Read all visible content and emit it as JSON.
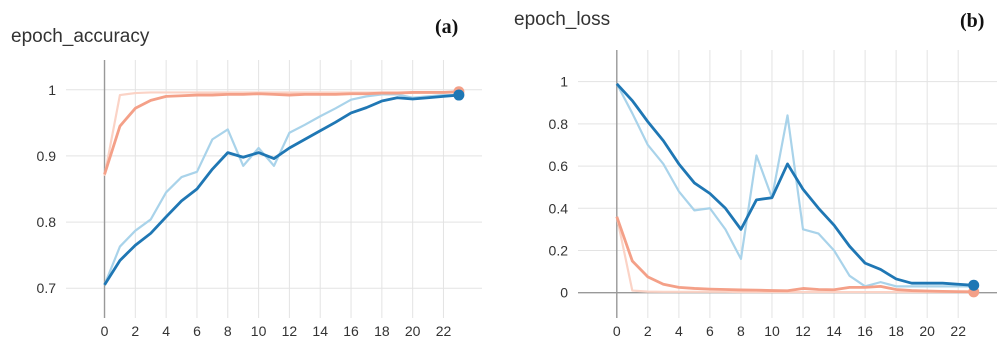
{
  "chart_data": [
    {
      "type": "line",
      "title": "epoch_accuracy",
      "panel_label": "(a)",
      "xlim": [
        -2.5,
        24.5
      ],
      "ylim": [
        0.655,
        1.045
      ],
      "xticks": [
        0,
        2,
        4,
        6,
        8,
        10,
        12,
        14,
        16,
        18,
        20,
        22
      ],
      "yticks": [
        0.7,
        0.8,
        0.9,
        1
      ],
      "ytick_labels": [
        "0.7",
        "0.8",
        "0.9",
        "1"
      ],
      "grid": true,
      "series": [
        {
          "color": "#f4a088",
          "light_color": "#fbd3c6",
          "x": [
            0,
            1,
            2,
            3,
            4,
            5,
            6,
            7,
            8,
            9,
            10,
            11,
            12,
            13,
            14,
            15,
            16,
            17,
            18,
            19,
            20,
            21,
            22,
            23
          ],
          "values": [
            0.872,
            0.945,
            0.972,
            0.984,
            0.99,
            0.991,
            0.992,
            0.992,
            0.993,
            0.993,
            0.994,
            0.993,
            0.992,
            0.993,
            0.993,
            0.993,
            0.994,
            0.994,
            0.995,
            0.995,
            0.996,
            0.996,
            0.996,
            0.997
          ],
          "raw": [
            0.87,
            0.992,
            0.995,
            0.996,
            0.996,
            0.996,
            0.996,
            0.996,
            0.996,
            0.996,
            0.996,
            0.996,
            0.996,
            0.996,
            0.996,
            0.996,
            0.996,
            0.996,
            0.996,
            0.996,
            0.996,
            0.996,
            0.996,
            0.997
          ]
        },
        {
          "color": "#1f77b4",
          "light_color": "#a9d3ea",
          "x": [
            0,
            1,
            2,
            3,
            4,
            5,
            6,
            7,
            8,
            9,
            10,
            11,
            12,
            13,
            14,
            15,
            16,
            17,
            18,
            19,
            20,
            21,
            22,
            23
          ],
          "values": [
            0.705,
            0.742,
            0.765,
            0.783,
            0.808,
            0.832,
            0.85,
            0.88,
            0.905,
            0.898,
            0.905,
            0.896,
            0.912,
            0.925,
            0.938,
            0.951,
            0.965,
            0.973,
            0.983,
            0.988,
            0.986,
            0.988,
            0.99,
            0.992
          ],
          "raw": [
            0.705,
            0.763,
            0.787,
            0.804,
            0.845,
            0.868,
            0.876,
            0.925,
            0.94,
            0.885,
            0.912,
            0.885,
            0.935,
            0.947,
            0.96,
            0.972,
            0.985,
            0.99,
            0.993,
            0.993,
            0.988,
            0.99,
            0.992,
            0.992
          ]
        }
      ]
    },
    {
      "type": "line",
      "title": "epoch_loss",
      "panel_label": "(b)",
      "xlim": [
        -2.5,
        24.5
      ],
      "ylim": [
        -0.12,
        1.15
      ],
      "xticks": [
        0,
        2,
        4,
        6,
        8,
        10,
        12,
        14,
        16,
        18,
        20,
        22
      ],
      "yticks": [
        0,
        0.2,
        0.4,
        0.6,
        0.8,
        1
      ],
      "ytick_labels": [
        "0",
        "0.2",
        "0.4",
        "0.6",
        "0.8",
        "1"
      ],
      "grid": true,
      "series": [
        {
          "color": "#f4a088",
          "light_color": "#fbd3c6",
          "x": [
            0,
            1,
            2,
            3,
            4,
            5,
            6,
            7,
            8,
            9,
            10,
            11,
            12,
            13,
            14,
            15,
            16,
            17,
            18,
            19,
            20,
            21,
            22,
            23
          ],
          "values": [
            0.36,
            0.15,
            0.075,
            0.04,
            0.025,
            0.02,
            0.017,
            0.015,
            0.013,
            0.012,
            0.01,
            0.009,
            0.02,
            0.015,
            0.014,
            0.025,
            0.025,
            0.03,
            0.015,
            0.01,
            0.008,
            0.006,
            0.005,
            0.004
          ],
          "raw": [
            0.36,
            0.01,
            0.005,
            0.004,
            0.004,
            0.004,
            0.004,
            0.004,
            0.003,
            0.003,
            0.003,
            0.003,
            0.003,
            0.003,
            0.003,
            0.003,
            0.003,
            0.003,
            0.003,
            0.003,
            0.003,
            0.003,
            0.003,
            0.003
          ]
        },
        {
          "color": "#1f77b4",
          "light_color": "#a9d3ea",
          "x": [
            0,
            1,
            2,
            3,
            4,
            5,
            6,
            7,
            8,
            9,
            10,
            11,
            12,
            13,
            14,
            15,
            16,
            17,
            18,
            19,
            20,
            21,
            22,
            23
          ],
          "values": [
            0.99,
            0.91,
            0.81,
            0.72,
            0.61,
            0.52,
            0.47,
            0.4,
            0.3,
            0.44,
            0.45,
            0.61,
            0.49,
            0.4,
            0.32,
            0.22,
            0.14,
            0.11,
            0.065,
            0.045,
            0.045,
            0.045,
            0.04,
            0.035
          ],
          "raw": [
            0.99,
            0.85,
            0.7,
            0.61,
            0.48,
            0.39,
            0.4,
            0.3,
            0.16,
            0.65,
            0.45,
            0.84,
            0.3,
            0.28,
            0.2,
            0.08,
            0.03,
            0.05,
            0.03,
            0.03,
            0.03,
            0.03,
            0.03,
            0.03
          ]
        }
      ]
    }
  ]
}
